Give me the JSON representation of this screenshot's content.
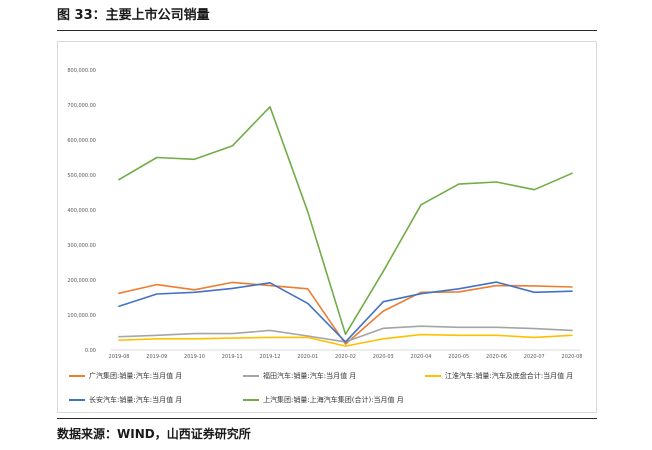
{
  "figure": {
    "title": "图 33：主要上市公司销量",
    "source": "数据来源：WIND，山西证券研究所"
  },
  "chart_data": {
    "type": "line",
    "categories": [
      "2019-08",
      "2019-09",
      "2019-10",
      "2019-11",
      "2019-12",
      "2020-01",
      "2020-02",
      "2020-03",
      "2020-04",
      "2020-05",
      "2020-06",
      "2020-07",
      "2020-08"
    ],
    "ylim": [
      0,
      800000
    ],
    "yticks": [
      "0.00",
      "100,000.00",
      "200,000.00",
      "300,000.00",
      "400,000.00",
      "500,000.00",
      "600,000.00",
      "700,000.00",
      "800,000.00"
    ],
    "grid": false,
    "legend_position": "bottom",
    "series": [
      {
        "name": "广汽集团:销量:汽车:当月值 月",
        "color": "#ed7d31",
        "values": [
          162000,
          187000,
          172000,
          193000,
          184000,
          175000,
          17000,
          111000,
          165000,
          166000,
          184000,
          183000,
          180000
        ]
      },
      {
        "name": "福田汽车:销量:汽车:当月值 月",
        "color": "#a5a5a5",
        "values": [
          38000,
          42000,
          47000,
          47000,
          56000,
          40000,
          23000,
          62000,
          68000,
          65000,
          65000,
          61000,
          56000
        ]
      },
      {
        "name": "江淮汽车:销量:汽车及底盘合计:当月值 月",
        "color": "#ffc000",
        "values": [
          28000,
          32000,
          32000,
          34000,
          36000,
          36000,
          11000,
          32000,
          44000,
          42000,
          42000,
          36000,
          42000
        ]
      },
      {
        "name": "长安汽车:销量:汽车:当月值 月",
        "color": "#4472c4",
        "values": [
          125000,
          160000,
          165000,
          176000,
          192000,
          133000,
          23000,
          138000,
          161000,
          175000,
          194000,
          165000,
          168000
        ]
      },
      {
        "name": "上汽集团:销量:上海汽车集团(合计):当月值 月",
        "color": "#70ad47",
        "values": [
          487000,
          550000,
          545000,
          583000,
          695000,
          395000,
          45000,
          225000,
          415000,
          474000,
          480000,
          458000,
          505000
        ]
      }
    ]
  }
}
